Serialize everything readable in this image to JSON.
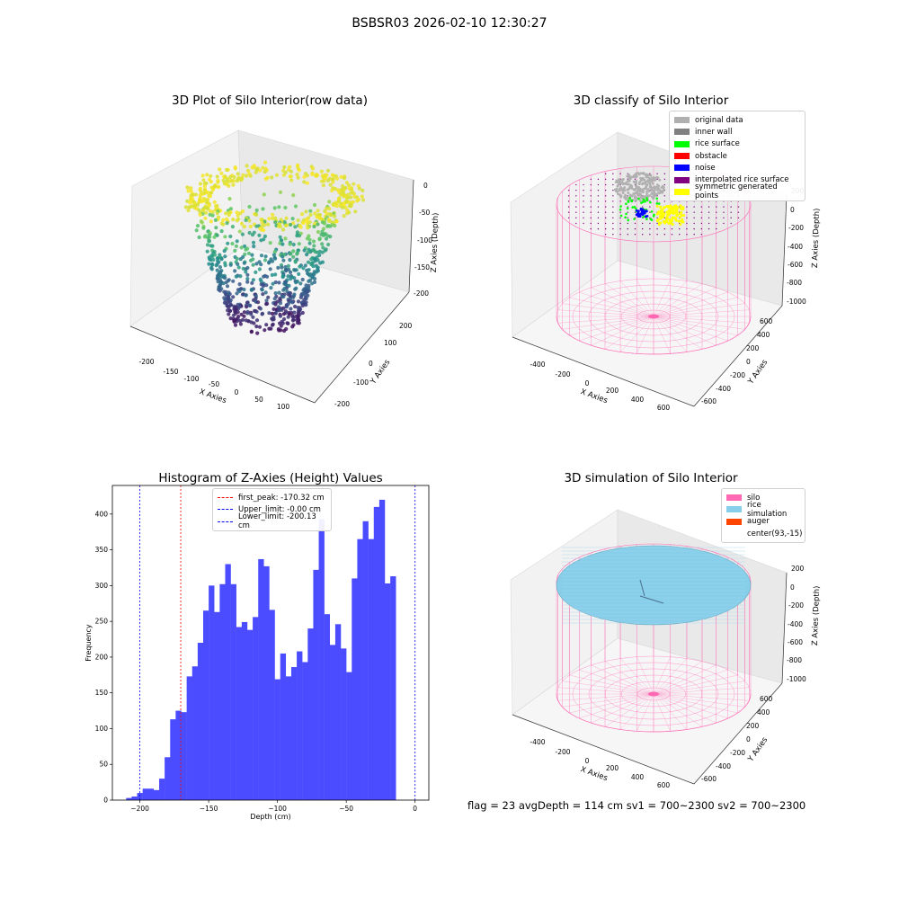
{
  "suptitle": "BSBSR03 2026-02-10 12:30:27",
  "footer": "flag = 23  avgDepth = 114 cm  sv1 = 700~2300  sv2 = 700~2300",
  "colors": {
    "original": "#b0b0b0",
    "inner_wall": "#808080",
    "rice_surface": "#00ff00",
    "obstacle": "#ff0000",
    "noise": "#0000ff",
    "interpolated": "#800080",
    "symmetric": "#ffff00",
    "silo": "#ff69b4",
    "rice_sim": "#87ceeb",
    "auger": "#ff4500",
    "hist": "#4b4bff"
  },
  "panels": {
    "raw": {
      "title": "3D Plot of Silo Interior(row data)",
      "xlabel": "X Axies",
      "ylabel": "Y Axies",
      "zlabel": "Z Axies (Depth)",
      "xticks": [
        "-200",
        "-150",
        "-100",
        "-50",
        "0",
        "50",
        "100"
      ],
      "yticks": [
        "-200",
        "-100",
        "0",
        "100",
        "200"
      ],
      "zticks": [
        "0",
        "-50",
        "-100",
        "-150",
        "-200"
      ]
    },
    "classify": {
      "title": "3D classify of Silo Interior",
      "xlabel": "X Axies",
      "ylabel": "Y Axies",
      "zlabel": "Z Axies (Depth)",
      "xticks": [
        "-400",
        "-200",
        "0",
        "200",
        "400",
        "600"
      ],
      "yticks": [
        "-600",
        "-400",
        "-200",
        "0",
        "200",
        "400",
        "600"
      ],
      "zticks": [
        "200",
        "0",
        "-200",
        "-400",
        "-600",
        "-800",
        "-1000"
      ],
      "legend": [
        {
          "label": "original data",
          "color": "#b0b0b0"
        },
        {
          "label": "inner wall",
          "color": "#808080"
        },
        {
          "label": "rice surface",
          "color": "#00ff00"
        },
        {
          "label": "obstacle",
          "color": "#ff0000"
        },
        {
          "label": "noise",
          "color": "#0000ff"
        },
        {
          "label": "interpolated rice surface",
          "color": "#800080"
        },
        {
          "label": "symmetric generated points",
          "color": "#ffff00"
        }
      ]
    },
    "simulation": {
      "title": "3D simulation of Silo Interior",
      "xlabel": "X Axies",
      "ylabel": "Y Axies",
      "zlabel": "Z Axies (Depth)",
      "xticks": [
        "-400",
        "-200",
        "0",
        "200",
        "400",
        "600"
      ],
      "yticks": [
        "-600",
        "-400",
        "-200",
        "0",
        "200",
        "400",
        "600"
      ],
      "zticks": [
        "200",
        "0",
        "-200",
        "-400",
        "-600",
        "-800",
        "-1000"
      ],
      "legend": [
        {
          "label": "silo",
          "color": "#ff69b4"
        },
        {
          "label": "rice simulation",
          "color": "#87ceeb"
        },
        {
          "label": "auger",
          "color": "#ff4500"
        },
        {
          "label": "center(93,-15)",
          "color": ""
        }
      ]
    }
  },
  "chart_data": [
    {
      "type": "histogram",
      "title": "Histogram of Z-Axies (Height) Values",
      "xlabel": "Depth (cm)",
      "ylabel": "Frequency",
      "xlim": [
        -220,
        10
      ],
      "ylim": [
        0,
        440
      ],
      "xticks": [
        -200,
        -150,
        -100,
        -50,
        0
      ],
      "yticks": [
        0,
        50,
        100,
        150,
        200,
        250,
        300,
        350,
        400
      ],
      "bin_width": 4,
      "bins_start": -210,
      "values": [
        3,
        5,
        10,
        16,
        16,
        14,
        30,
        60,
        113,
        125,
        123,
        173,
        187,
        220,
        265,
        300,
        263,
        302,
        330,
        302,
        242,
        249,
        238,
        256,
        337,
        327,
        266,
        169,
        205,
        173,
        186,
        208,
        193,
        240,
        322,
        393,
        260,
        217,
        246,
        212,
        179,
        310,
        365,
        390,
        365,
        410,
        420,
        303,
        313
      ],
      "vlines": [
        {
          "x": -170.32,
          "color": "#ff0000",
          "label": "first_peak: -170.32 cm"
        },
        {
          "x": -0.0,
          "color": "#0000ff",
          "label": "Upper_limit: -0.00 cm"
        },
        {
          "x": -200.13,
          "color": "#0000ff",
          "label": "Lower_limit: -200.13 cm"
        }
      ],
      "legend_position": "top-center"
    }
  ]
}
